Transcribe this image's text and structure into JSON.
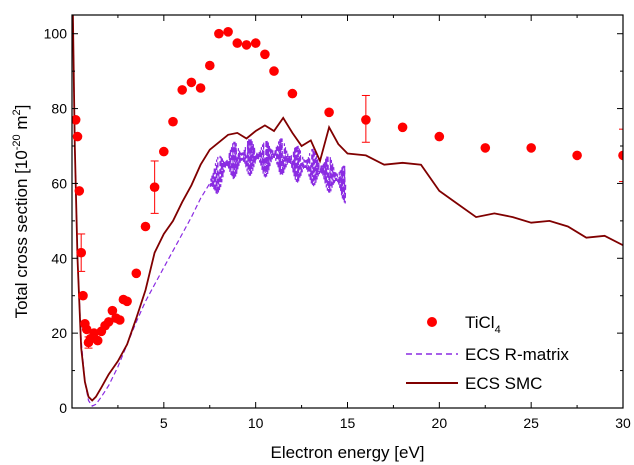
{
  "chart_data": {
    "type": "line",
    "xlabel": "Electron energy [eV]",
    "ylabel_main": "Total cross section [10",
    "ylabel_exp": "-20",
    "ylabel_unit": " m",
    "ylabel_unit_exp": "2",
    "ylabel_close": "]",
    "xlim": [
      0,
      30
    ],
    "ylim": [
      0,
      105
    ],
    "xticks": [
      5,
      10,
      15,
      20,
      25,
      30
    ],
    "yticks": [
      0,
      20,
      40,
      60,
      80,
      100
    ],
    "grid": false,
    "legend_position": "bottom-right",
    "colors": {
      "experiment": "#ff0000",
      "rmatrix": "#8a2be2",
      "smc": "#800000"
    },
    "series": [
      {
        "name": "TiCl",
        "name_sub": "4",
        "kind": "scatter",
        "points": [
          [
            0.2,
            77
          ],
          [
            0.3,
            72.5
          ],
          [
            0.4,
            58
          ],
          [
            0.5,
            41.5
          ],
          [
            0.6,
            30
          ],
          [
            0.7,
            22.5
          ],
          [
            0.8,
            21
          ],
          [
            0.9,
            17.5
          ],
          [
            1.0,
            18.5
          ],
          [
            1.2,
            20
          ],
          [
            1.4,
            18
          ],
          [
            1.6,
            20.5
          ],
          [
            1.8,
            22
          ],
          [
            2.0,
            23
          ],
          [
            2.2,
            26
          ],
          [
            2.4,
            24
          ],
          [
            2.6,
            23.5
          ],
          [
            2.8,
            29
          ],
          [
            3.0,
            28.5
          ],
          [
            3.5,
            36
          ],
          [
            4.0,
            48.5
          ],
          [
            4.5,
            59
          ],
          [
            5.0,
            68.5
          ],
          [
            5.5,
            76.5
          ],
          [
            6.0,
            85
          ],
          [
            6.5,
            87
          ],
          [
            7.0,
            85.5
          ],
          [
            7.5,
            91.5
          ],
          [
            8.0,
            100
          ],
          [
            8.5,
            100.5
          ],
          [
            9.0,
            97.5
          ],
          [
            9.5,
            97
          ],
          [
            10.0,
            97.5
          ],
          [
            10.5,
            94.5
          ],
          [
            11.0,
            90
          ],
          [
            12.0,
            84
          ],
          [
            14.0,
            79
          ],
          [
            16.0,
            77
          ],
          [
            18.0,
            75
          ],
          [
            20.0,
            72.5
          ],
          [
            22.5,
            69.5
          ],
          [
            25.0,
            69.5
          ],
          [
            27.5,
            67.5
          ],
          [
            30.0,
            67.5
          ]
        ],
        "error_bars": [
          {
            "x": 0.5,
            "low": 36.5,
            "high": 46.5
          },
          {
            "x": 0.9,
            "low": 16,
            "high": 19
          },
          {
            "x": 4.5,
            "low": 52,
            "high": 66
          },
          {
            "x": 16.0,
            "low": 71,
            "high": 83.5
          },
          {
            "x": 30.0,
            "low": 60.5,
            "high": 74.5
          }
        ]
      },
      {
        "name": "ECS R-matrix",
        "kind": "line-dashed",
        "x": [
          0.05,
          0.15,
          0.3,
          0.5,
          0.7,
          0.9,
          1.1,
          1.3,
          1.6,
          2.0,
          2.5,
          3.0,
          3.5,
          4.0,
          4.5,
          5.0,
          5.5,
          6.0,
          6.5,
          7.0,
          7.5,
          8.0,
          8.5,
          9.0,
          9.5,
          10.0,
          10.5,
          11.0,
          11.5,
          12.0,
          12.5,
          13.0,
          13.5,
          14.0,
          14.5,
          14.9
        ],
        "values": [
          105,
          70,
          40,
          18,
          7,
          2,
          0.5,
          1,
          3,
          6,
          11,
          17,
          23,
          28.5,
          33,
          37.5,
          42,
          46.5,
          51,
          56,
          60,
          63,
          66,
          67,
          67.5,
          67.5,
          67,
          68,
          67.5,
          66,
          65.5,
          65,
          64,
          63,
          61.5,
          60
        ]
      },
      {
        "name": "ECS SMC",
        "kind": "line",
        "x": [
          0.05,
          0.15,
          0.3,
          0.5,
          0.7,
          0.9,
          1.1,
          1.3,
          1.6,
          2.0,
          2.5,
          3.0,
          3.5,
          4.0,
          4.5,
          5.0,
          5.5,
          6.0,
          6.5,
          7.0,
          7.5,
          8.0,
          8.5,
          9.0,
          9.5,
          10.0,
          10.5,
          11.0,
          11.5,
          12.0,
          12.5,
          13.0,
          13.5,
          14.0,
          14.5,
          15.0,
          16.0,
          17.0,
          18.0,
          19.0,
          20.0,
          21.0,
          22.0,
          23.0,
          24.0,
          25.0,
          26.0,
          27.0,
          28.0,
          29.0,
          30.0
        ],
        "values": [
          105,
          70,
          40,
          16,
          7,
          3,
          2,
          3,
          5.5,
          9,
          12.5,
          17,
          24,
          31.5,
          41.5,
          46.5,
          50,
          55,
          59.5,
          65,
          69,
          71,
          73,
          73.5,
          72,
          74,
          75.5,
          74,
          77.5,
          73.5,
          70,
          71.5,
          66,
          75,
          70.5,
          68,
          67.5,
          65,
          65.5,
          65,
          58,
          54.5,
          51,
          52,
          51,
          49.5,
          50,
          48.5,
          45.5,
          46,
          43.5
        ]
      }
    ]
  }
}
